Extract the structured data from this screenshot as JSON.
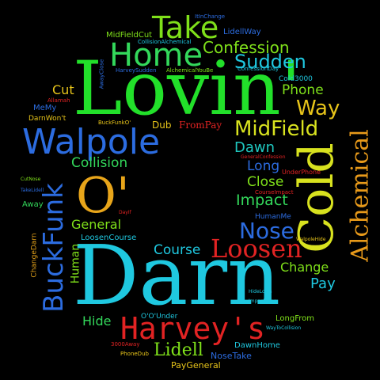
{
  "title": "",
  "words": [
    {
      "text": "Darn",
      "color": "#1FC8E0"
    },
    {
      "text": "Lovin'",
      "color": "#22E02A"
    },
    {
      "text": "Cold",
      "color": "#D8E21F"
    },
    {
      "text": "O'",
      "color": "#E8A51A"
    },
    {
      "text": "Harvey's",
      "color": "#E22323"
    },
    {
      "text": "Walpole",
      "color": "#2C6CE0"
    },
    {
      "text": "BuckFunk",
      "color": "#2C6CE0"
    },
    {
      "text": "Home",
      "color": "#33D85B"
    },
    {
      "text": "Take",
      "color": "#7FE01A"
    },
    {
      "text": "Alchemical",
      "color": "#E89A1A"
    },
    {
      "text": "Loosen",
      "color": "#E22323"
    },
    {
      "text": "MidField",
      "color": "#D8E21F"
    },
    {
      "text": "Nose",
      "color": "#2C6CE0"
    },
    {
      "text": "Confession",
      "color": "#7FE01A"
    },
    {
      "text": "Sudden",
      "color": "#1FC8E0"
    },
    {
      "text": "Way",
      "color": "#E8C51A"
    },
    {
      "text": "Phone",
      "color": "#7FE01A"
    },
    {
      "text": "Cut",
      "color": "#E8C51A"
    },
    {
      "text": "Collision",
      "color": "#33D85B"
    },
    {
      "text": "Dawn",
      "color": "#1FC8C0"
    },
    {
      "text": "Long",
      "color": "#2C6CE0"
    },
    {
      "text": "Close",
      "color": "#7FE01A"
    },
    {
      "text": "Impact",
      "color": "#33D85B"
    },
    {
      "text": "General",
      "color": "#7FE01A"
    },
    {
      "text": "Human",
      "color": "#7FE01A"
    },
    {
      "text": "Course",
      "color": "#1FC8E0"
    },
    {
      "text": "Change",
      "color": "#7FE01A"
    },
    {
      "text": "Pay",
      "color": "#1FC8E0"
    },
    {
      "text": "Hide",
      "color": "#33D85B"
    },
    {
      "text": "Lidell",
      "color": "#7FE01A"
    },
    {
      "text": "Dub",
      "color": "#E8C51A"
    },
    {
      "text": "FromPay",
      "color": "#E22323"
    },
    {
      "text": "Cold3000",
      "color": "#1FC8E0"
    },
    {
      "text": "LidellWay",
      "color": "#2C6CE0"
    },
    {
      "text": "MidFieldCut",
      "color": "#7FE01A"
    },
    {
      "text": "MeMy",
      "color": "#2C6CE0"
    },
    {
      "text": "DarnWon't",
      "color": "#E8C51A"
    },
    {
      "text": "Away",
      "color": "#33D85B"
    },
    {
      "text": "LoosenCourse",
      "color": "#1FC8E0"
    },
    {
      "text": "ChangeDarn",
      "color": "#E8A51A"
    },
    {
      "text": "O'O'Under",
      "color": "#1FC8E0"
    },
    {
      "text": "LongFrom",
      "color": "#7FE01A"
    },
    {
      "text": "DawnHome",
      "color": "#1FC8E0"
    },
    {
      "text": "NoseTake",
      "color": "#2C6CE0"
    },
    {
      "text": "PayGeneral",
      "color": "#E8C51A"
    },
    {
      "text": "CollisionAlchemical",
      "color": "#1FC8E0"
    },
    {
      "text": "ItInChange",
      "color": "#2C6CE0"
    },
    {
      "text": "AlchemicalYouBe",
      "color": "#7FE01A"
    },
    {
      "text": "ConfessionDay",
      "color": "#1FC8E0"
    },
    {
      "text": "HarveySudden",
      "color": "#2C6CE0"
    },
    {
      "text": "AwayClose",
      "color": "#2C6CE0"
    },
    {
      "text": "Allamah",
      "color": "#E22323"
    },
    {
      "text": "BuckFunkO'",
      "color": "#E8C51A"
    },
    {
      "text": "GeneralConfession",
      "color": "#E22323"
    },
    {
      "text": "UnderPhone",
      "color": "#E22323"
    },
    {
      "text": "CourseImpact",
      "color": "#E22323"
    },
    {
      "text": "HumanMe",
      "color": "#2C6CE0"
    },
    {
      "text": "WalpoleHide",
      "color": "#E8C51A"
    },
    {
      "text": "HideLovin",
      "color": "#1FC8E0"
    },
    {
      "text": "ImpactLong",
      "color": "#1FC8E0"
    },
    {
      "text": "WayToCollision",
      "color": "#1FC8E0"
    },
    {
      "text": "CutNose",
      "color": "#7FE01A"
    },
    {
      "text": "TakeLidell",
      "color": "#2C6CE0"
    },
    {
      "text": "DayIf",
      "color": "#E22323"
    },
    {
      "text": "3000Away",
      "color": "#E22323"
    },
    {
      "text": "PhoneDub",
      "color": "#E8C51A"
    }
  ]
}
